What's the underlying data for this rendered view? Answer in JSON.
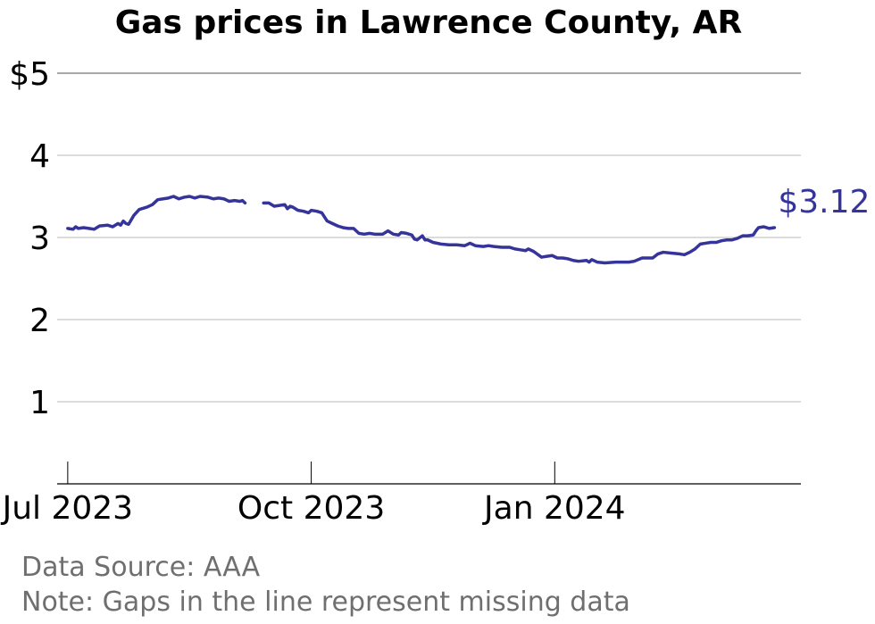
{
  "chart_data": {
    "type": "line",
    "title": "Gas prices in Lawrence County, AR",
    "xlabel": "",
    "ylabel": "",
    "ylim": [
      0,
      5
    ],
    "xlim": [
      "2023-06-27",
      "2024-04-03"
    ],
    "y_ticks": [
      {
        "value": 5,
        "label": "$5"
      },
      {
        "value": 4,
        "label": "4"
      },
      {
        "value": 3,
        "label": "3"
      },
      {
        "value": 2,
        "label": "2"
      },
      {
        "value": 1,
        "label": "1"
      }
    ],
    "x_ticks": [
      {
        "date": "2023-07-01",
        "label": "Jul 2023"
      },
      {
        "date": "2023-10-01",
        "label": "Oct 2023"
      },
      {
        "date": "2024-01-01",
        "label": "Jan 2024"
      }
    ],
    "grid": true,
    "line_color": "#35349b",
    "end_label": "$3.12",
    "series": [
      {
        "segments": [
          [
            [
              "2023-07-01",
              3.11
            ],
            [
              "2023-07-03",
              3.1
            ],
            [
              "2023-07-04",
              3.13
            ],
            [
              "2023-07-05",
              3.11
            ],
            [
              "2023-07-07",
              3.12
            ],
            [
              "2023-07-09",
              3.11
            ],
            [
              "2023-07-11",
              3.1
            ],
            [
              "2023-07-13",
              3.14
            ],
            [
              "2023-07-16",
              3.15
            ],
            [
              "2023-07-18",
              3.13
            ],
            [
              "2023-07-20",
              3.17
            ],
            [
              "2023-07-21",
              3.15
            ],
            [
              "2023-07-22",
              3.2
            ],
            [
              "2023-07-23",
              3.17
            ],
            [
              "2023-07-24",
              3.16
            ],
            [
              "2023-07-26",
              3.27
            ],
            [
              "2023-07-28",
              3.34
            ],
            [
              "2023-07-31",
              3.37
            ],
            [
              "2023-08-02",
              3.4
            ],
            [
              "2023-08-04",
              3.46
            ],
            [
              "2023-08-06",
              3.47
            ],
            [
              "2023-08-08",
              3.48
            ],
            [
              "2023-08-10",
              3.5
            ],
            [
              "2023-08-12",
              3.47
            ],
            [
              "2023-08-14",
              3.49
            ],
            [
              "2023-08-16",
              3.5
            ],
            [
              "2023-08-18",
              3.48
            ],
            [
              "2023-08-20",
              3.5
            ],
            [
              "2023-08-23",
              3.49
            ],
            [
              "2023-08-25",
              3.47
            ],
            [
              "2023-08-27",
              3.48
            ],
            [
              "2023-08-29",
              3.47
            ],
            [
              "2023-08-31",
              3.44
            ],
            [
              "2023-09-02",
              3.45
            ],
            [
              "2023-09-04",
              3.44
            ],
            [
              "2023-09-05",
              3.45
            ],
            [
              "2023-09-06",
              3.42
            ]
          ],
          [
            [
              "2023-09-13",
              3.42
            ],
            [
              "2023-09-15",
              3.42
            ],
            [
              "2023-09-17",
              3.38
            ],
            [
              "2023-09-19",
              3.39
            ],
            [
              "2023-09-21",
              3.4
            ],
            [
              "2023-09-22",
              3.35
            ],
            [
              "2023-09-23",
              3.38
            ],
            [
              "2023-09-24",
              3.37
            ],
            [
              "2023-09-26",
              3.33
            ],
            [
              "2023-09-28",
              3.32
            ],
            [
              "2023-09-30",
              3.3
            ],
            [
              "2023-10-01",
              3.33
            ],
            [
              "2023-10-03",
              3.32
            ],
            [
              "2023-10-04",
              3.31
            ],
            [
              "2023-10-05",
              3.3
            ],
            [
              "2023-10-07",
              3.2
            ],
            [
              "2023-10-09",
              3.17
            ],
            [
              "2023-10-11",
              3.14
            ],
            [
              "2023-10-13",
              3.12
            ],
            [
              "2023-10-15",
              3.11
            ],
            [
              "2023-10-17",
              3.11
            ],
            [
              "2023-10-19",
              3.05
            ],
            [
              "2023-10-21",
              3.04
            ],
            [
              "2023-10-23",
              3.05
            ],
            [
              "2023-10-25",
              3.04
            ],
            [
              "2023-10-28",
              3.04
            ],
            [
              "2023-10-30",
              3.08
            ],
            [
              "2023-11-01",
              3.04
            ],
            [
              "2023-11-03",
              3.03
            ],
            [
              "2023-11-04",
              3.06
            ],
            [
              "2023-11-06",
              3.05
            ],
            [
              "2023-11-08",
              3.03
            ],
            [
              "2023-11-09",
              2.98
            ],
            [
              "2023-11-10",
              2.97
            ],
            [
              "2023-11-12",
              3.02
            ],
            [
              "2023-11-13",
              2.97
            ],
            [
              "2023-11-14",
              2.97
            ],
            [
              "2023-11-16",
              2.94
            ],
            [
              "2023-11-19",
              2.92
            ],
            [
              "2023-11-22",
              2.91
            ],
            [
              "2023-11-25",
              2.91
            ],
            [
              "2023-11-28",
              2.9
            ],
            [
              "2023-11-30",
              2.93
            ],
            [
              "2023-12-02",
              2.9
            ],
            [
              "2023-12-05",
              2.89
            ],
            [
              "2023-12-07",
              2.9
            ],
            [
              "2023-12-09",
              2.89
            ],
            [
              "2023-12-12",
              2.88
            ],
            [
              "2023-12-15",
              2.88
            ],
            [
              "2023-12-17",
              2.86
            ],
            [
              "2023-12-19",
              2.85
            ],
            [
              "2023-12-21",
              2.84
            ],
            [
              "2023-12-22",
              2.86
            ],
            [
              "2023-12-24",
              2.83
            ],
            [
              "2023-12-27",
              2.76
            ],
            [
              "2023-12-29",
              2.77
            ],
            [
              "2023-12-31",
              2.78
            ],
            [
              "2024-01-02",
              2.75
            ],
            [
              "2024-01-04",
              2.75
            ],
            [
              "2024-01-06",
              2.74
            ],
            [
              "2024-01-08",
              2.72
            ],
            [
              "2024-01-10",
              2.71
            ],
            [
              "2024-01-13",
              2.72
            ],
            [
              "2024-01-14",
              2.7
            ],
            [
              "2024-01-15",
              2.73
            ],
            [
              "2024-01-17",
              2.7
            ],
            [
              "2024-01-20",
              2.69
            ],
            [
              "2024-01-24",
              2.7
            ],
            [
              "2024-01-27",
              2.7
            ],
            [
              "2024-01-29",
              2.7
            ],
            [
              "2024-01-31",
              2.71
            ],
            [
              "2024-02-03",
              2.75
            ],
            [
              "2024-02-05",
              2.75
            ],
            [
              "2024-02-07",
              2.75
            ],
            [
              "2024-02-09",
              2.8
            ],
            [
              "2024-02-11",
              2.82
            ],
            [
              "2024-02-14",
              2.81
            ],
            [
              "2024-02-17",
              2.8
            ],
            [
              "2024-02-19",
              2.79
            ],
            [
              "2024-02-21",
              2.82
            ],
            [
              "2024-02-23",
              2.86
            ],
            [
              "2024-02-25",
              2.92
            ],
            [
              "2024-02-27",
              2.93
            ],
            [
              "2024-02-29",
              2.94
            ],
            [
              "2024-03-02",
              2.94
            ],
            [
              "2024-03-04",
              2.96
            ],
            [
              "2024-03-06",
              2.97
            ],
            [
              "2024-03-08",
              2.97
            ],
            [
              "2024-03-10",
              2.99
            ],
            [
              "2024-03-12",
              3.02
            ],
            [
              "2024-03-14",
              3.02
            ],
            [
              "2024-03-16",
              3.03
            ],
            [
              "2024-03-17",
              3.08
            ],
            [
              "2024-03-18",
              3.12
            ],
            [
              "2024-03-20",
              3.13
            ],
            [
              "2024-03-22",
              3.11
            ],
            [
              "2024-03-24",
              3.12
            ]
          ]
        ]
      }
    ],
    "notes": [
      "Data Source: AAA",
      "Note: Gaps in the line represent missing data"
    ]
  }
}
